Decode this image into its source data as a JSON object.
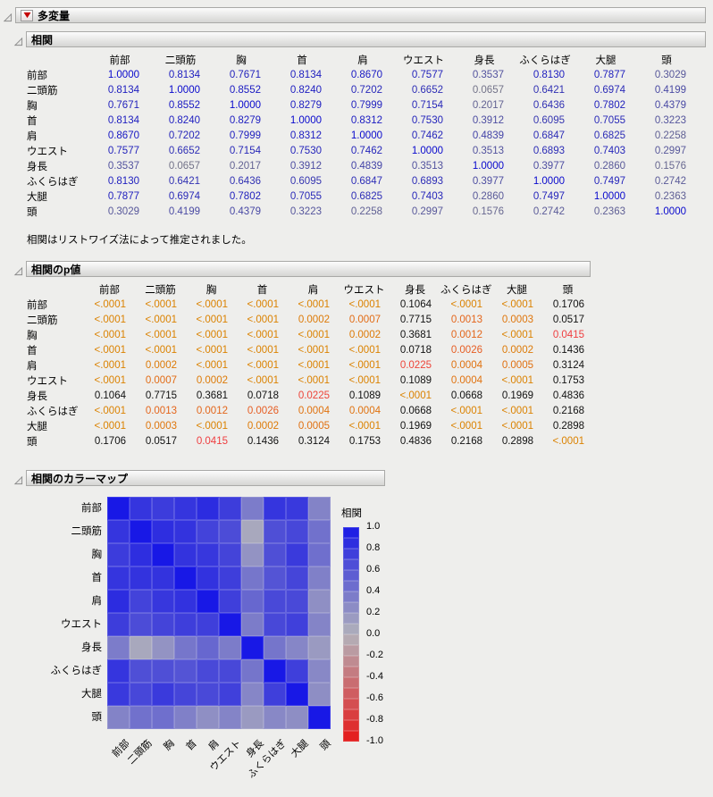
{
  "window": {
    "title": "多変量"
  },
  "variables": [
    "前部",
    "二頭筋",
    "胸",
    "首",
    "肩",
    "ウエスト",
    "身長",
    "ふくらはぎ",
    "大腿",
    "頭"
  ],
  "sections": {
    "correlation": {
      "title": "相関",
      "note": "相関はリストワイズ法によって推定されました。"
    },
    "pvalues": {
      "title": "相関のp値"
    },
    "colormap": {
      "title": "相関のカラーマップ",
      "legend_title": "相関",
      "legend_ticks": [
        "1.0",
        "0.8",
        "0.6",
        "0.4",
        "0.2",
        "0.0",
        "-0.2",
        "-0.4",
        "-0.6",
        "-0.8",
        "-1.0"
      ]
    }
  },
  "p_values": [
    [
      "<.0001",
      "<.0001",
      "<.0001",
      "<.0001",
      "<.0001",
      "<.0001",
      "0.1064",
      "<.0001",
      "<.0001",
      "0.1706"
    ],
    [
      "<.0001",
      "<.0001",
      "<.0001",
      "<.0001",
      "0.0002",
      "0.0007",
      "0.7715",
      "0.0013",
      "0.0003",
      "0.0517"
    ],
    [
      "<.0001",
      "<.0001",
      "<.0001",
      "<.0001",
      "<.0001",
      "0.0002",
      "0.3681",
      "0.0012",
      "<.0001",
      "0.0415"
    ],
    [
      "<.0001",
      "<.0001",
      "<.0001",
      "<.0001",
      "<.0001",
      "<.0001",
      "0.0718",
      "0.0026",
      "0.0002",
      "0.1436"
    ],
    [
      "<.0001",
      "0.0002",
      "<.0001",
      "<.0001",
      "<.0001",
      "<.0001",
      "0.0225",
      "0.0004",
      "0.0005",
      "0.3124"
    ],
    [
      "<.0001",
      "0.0007",
      "0.0002",
      "<.0001",
      "<.0001",
      "<.0001",
      "0.1089",
      "0.0004",
      "<.0001",
      "0.1753"
    ],
    [
      "0.1064",
      "0.7715",
      "0.3681",
      "0.0718",
      "0.0225",
      "0.1089",
      "<.0001",
      "0.0668",
      "0.1969",
      "0.4836"
    ],
    [
      "<.0001",
      "0.0013",
      "0.0012",
      "0.0026",
      "0.0004",
      "0.0004",
      "0.0668",
      "<.0001",
      "<.0001",
      "0.2168"
    ],
    [
      "<.0001",
      "0.0003",
      "<.0001",
      "0.0002",
      "0.0005",
      "<.0001",
      "0.1969",
      "<.0001",
      "<.0001",
      "0.2898"
    ],
    [
      "0.1706",
      "0.0517",
      "0.0415",
      "0.1436",
      "0.3124",
      "0.1753",
      "0.4836",
      "0.2168",
      "0.2898",
      "<.0001"
    ]
  ],
  "chart_data": {
    "type": "heatmap",
    "title": "相関のカラーマップ",
    "rows": [
      "前部",
      "二頭筋",
      "胸",
      "首",
      "肩",
      "ウエスト",
      "身長",
      "ふくらはぎ",
      "大腿",
      "頭"
    ],
    "cols": [
      "前部",
      "二頭筋",
      "胸",
      "首",
      "肩",
      "ウエスト",
      "身長",
      "ふくらはぎ",
      "大腿",
      "頭"
    ],
    "values": [
      [
        1.0,
        0.8134,
        0.7671,
        0.8134,
        0.867,
        0.7577,
        0.3537,
        0.813,
        0.7877,
        0.3029
      ],
      [
        0.8134,
        1.0,
        0.8552,
        0.824,
        0.7202,
        0.6652,
        0.0657,
        0.6421,
        0.6974,
        0.4199
      ],
      [
        0.7671,
        0.8552,
        1.0,
        0.8279,
        0.7999,
        0.7154,
        0.2017,
        0.6436,
        0.7802,
        0.4379
      ],
      [
        0.8134,
        0.824,
        0.8279,
        1.0,
        0.8312,
        0.753,
        0.3912,
        0.6095,
        0.7055,
        0.3223
      ],
      [
        0.867,
        0.7202,
        0.7999,
        0.8312,
        1.0,
        0.7462,
        0.4839,
        0.6847,
        0.6825,
        0.2258
      ],
      [
        0.7577,
        0.6652,
        0.7154,
        0.753,
        0.7462,
        1.0,
        0.3513,
        0.6893,
        0.7403,
        0.2997
      ],
      [
        0.3537,
        0.0657,
        0.2017,
        0.3912,
        0.4839,
        0.3513,
        1.0,
        0.3977,
        0.286,
        0.1576
      ],
      [
        0.813,
        0.6421,
        0.6436,
        0.6095,
        0.6847,
        0.6893,
        0.3977,
        1.0,
        0.7497,
        0.2742
      ],
      [
        0.7877,
        0.6974,
        0.7802,
        0.7055,
        0.6825,
        0.7403,
        0.286,
        0.7497,
        1.0,
        0.2363
      ],
      [
        0.3029,
        0.4199,
        0.4379,
        0.3223,
        0.2258,
        0.2997,
        0.1576,
        0.2742,
        0.2363,
        1.0
      ]
    ],
    "value_range": [
      -1,
      1
    ],
    "legend": {
      "title": "相関",
      "position": "right",
      "ticks": [
        1.0,
        0.8,
        0.6,
        0.4,
        0.2,
        0.0,
        -0.2,
        -0.4,
        -0.6,
        -0.8,
        -1.0
      ]
    },
    "colors": {
      "positive": "#1818e6",
      "zero": "#b2b2ba",
      "negative": "#e61818"
    }
  }
}
